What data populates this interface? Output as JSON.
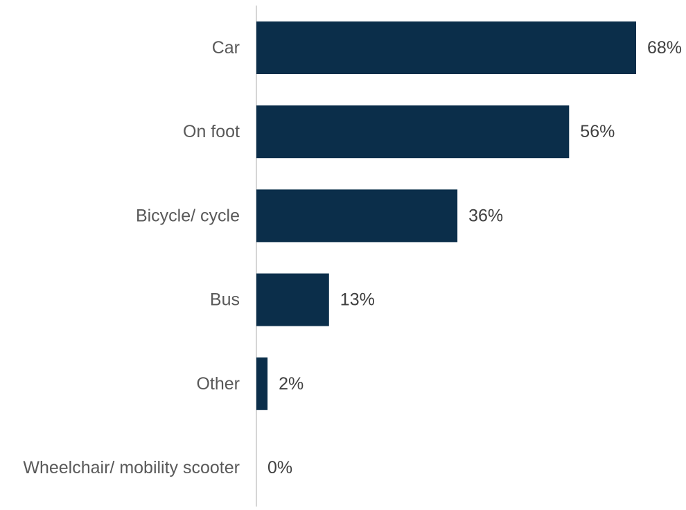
{
  "chart_data": {
    "type": "bar",
    "orientation": "horizontal",
    "categories": [
      "Car",
      "On foot",
      "Bicycle/ cycle",
      "Bus",
      "Other",
      "Wheelchair/ mobility scooter"
    ],
    "values": [
      68,
      56,
      36,
      13,
      2,
      0
    ],
    "value_labels": [
      "68%",
      "56%",
      "36%",
      "13%",
      "2%",
      "0%"
    ],
    "unit": "%",
    "xlim": [
      0,
      68
    ],
    "grid": false,
    "legend": "none",
    "colors": {
      "bar": "#0b2e4a",
      "axis": "#c8c8c8",
      "category_text": "#595959",
      "value_text": "#404040"
    }
  }
}
